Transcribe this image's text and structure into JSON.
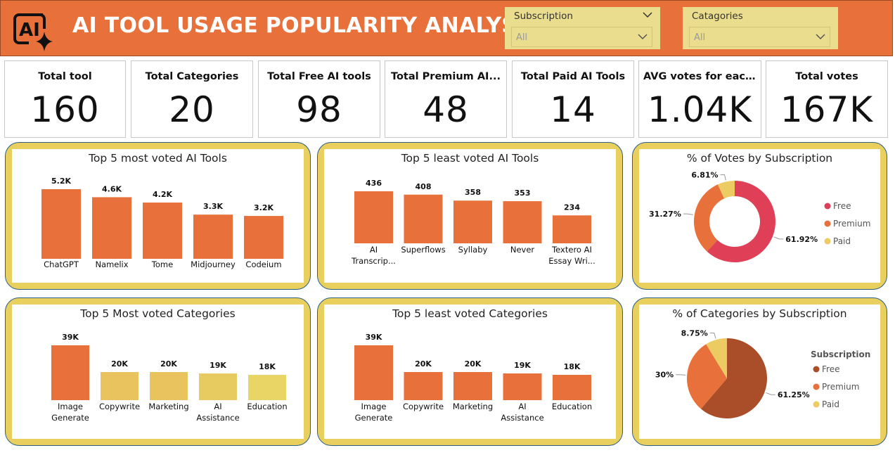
{
  "header": {
    "title": "AI TOOL USAGE POPULARITY ANALYSIS",
    "logo_text": "AI",
    "bg_color": "#E8703A"
  },
  "slicers": [
    {
      "label": "Subscription",
      "value": "All"
    },
    {
      "label": "Catagories",
      "value": "All"
    }
  ],
  "kpis": [
    {
      "label": "Total tool",
      "value": "160"
    },
    {
      "label": "Total Categories",
      "value": "20"
    },
    {
      "label": "Total Free AI tools",
      "value": "98"
    },
    {
      "label": "Total Premium AI...",
      "value": "48"
    },
    {
      "label": "Total Paid AI Tools",
      "value": "14"
    },
    {
      "label": "AVG votes for each...",
      "value": "1.04K"
    },
    {
      "label": "Total votes",
      "value": "167K"
    }
  ],
  "chart_data": [
    {
      "id": "most_voted_tools",
      "type": "bar",
      "title": "Top 5 most voted AI Tools",
      "categories": [
        [
          "ChatGPT"
        ],
        [
          "Namelix"
        ],
        [
          "Tome"
        ],
        [
          "Midjourney"
        ],
        [
          "Codeium"
        ]
      ],
      "values": [
        5.2,
        4.6,
        4.2,
        3.3,
        3.2
      ],
      "data_labels": [
        "5.2K",
        "4.6K",
        "4.2K",
        "3.3K",
        "3.2K"
      ],
      "colors": [
        "#E8703A",
        "#E8703A",
        "#E8703A",
        "#E8703A",
        "#E8703A"
      ],
      "ylim": [
        0,
        5.2
      ]
    },
    {
      "id": "least_voted_tools",
      "type": "bar",
      "title": "Top 5 least voted AI Tools",
      "categories": [
        [
          "AI",
          "Transcrip..."
        ],
        [
          "Superflows"
        ],
        [
          "Syllaby"
        ],
        [
          "Never"
        ],
        [
          "Textero AI",
          "Essay Wri..."
        ]
      ],
      "values": [
        436,
        408,
        358,
        353,
        234
      ],
      "data_labels": [
        "436",
        "408",
        "358",
        "353",
        "234"
      ],
      "colors": [
        "#E8703A",
        "#E8703A",
        "#E8703A",
        "#E8703A",
        "#E8703A"
      ],
      "ylim": [
        0,
        436
      ]
    },
    {
      "id": "votes_by_subscription",
      "type": "pie",
      "donut": true,
      "title": "% of Votes by Subscription",
      "labels": [
        "Free",
        "Premium",
        "Paid"
      ],
      "values": [
        61.92,
        31.27,
        6.81
      ],
      "data_labels": [
        "61.92%",
        "31.27%",
        "6.81%"
      ],
      "colors": [
        "#DF4057",
        "#E8703A",
        "#EBCB62"
      ],
      "legend_title": ""
    },
    {
      "id": "most_voted_categories",
      "type": "bar",
      "title": "Top 5 Most voted Categories",
      "categories": [
        [
          "Image",
          "Generate"
        ],
        [
          "Copywrite"
        ],
        [
          "Marketing"
        ],
        [
          "AI",
          "Assistance"
        ],
        [
          "Education"
        ]
      ],
      "values": [
        39,
        20,
        20,
        19,
        18
      ],
      "data_labels": [
        "39K",
        "20K",
        "20K",
        "19K",
        "18K"
      ],
      "colors": [
        "#E8703A",
        "#E8C35E",
        "#E8C35E",
        "#E8CB60",
        "#E8D566"
      ],
      "ylim": [
        0,
        39
      ]
    },
    {
      "id": "least_voted_categories",
      "type": "bar",
      "title": "Top 5 least voted Categories",
      "categories": [
        [
          "Image",
          "Generate"
        ],
        [
          "Copywrite"
        ],
        [
          "Marketing"
        ],
        [
          "AI",
          "Assistance"
        ],
        [
          "Education"
        ]
      ],
      "values": [
        39,
        20,
        20,
        19,
        18
      ],
      "data_labels": [
        "39K",
        "20K",
        "20K",
        "19K",
        "18K"
      ],
      "colors": [
        "#E8703A",
        "#E8703A",
        "#E8703A",
        "#E8703A",
        "#E8703A"
      ],
      "ylim": [
        0,
        39
      ]
    },
    {
      "id": "categories_by_subscription",
      "type": "pie",
      "donut": false,
      "title": "% of Categories by Subscription",
      "labels": [
        "Free",
        "Premium",
        "Paid"
      ],
      "values": [
        61.25,
        30,
        8.75
      ],
      "data_labels": [
        "61.25%",
        "30%",
        "8.75%"
      ],
      "colors": [
        "#A94E28",
        "#E8703A",
        "#EBCB62"
      ],
      "legend_title": "Subscription"
    }
  ]
}
